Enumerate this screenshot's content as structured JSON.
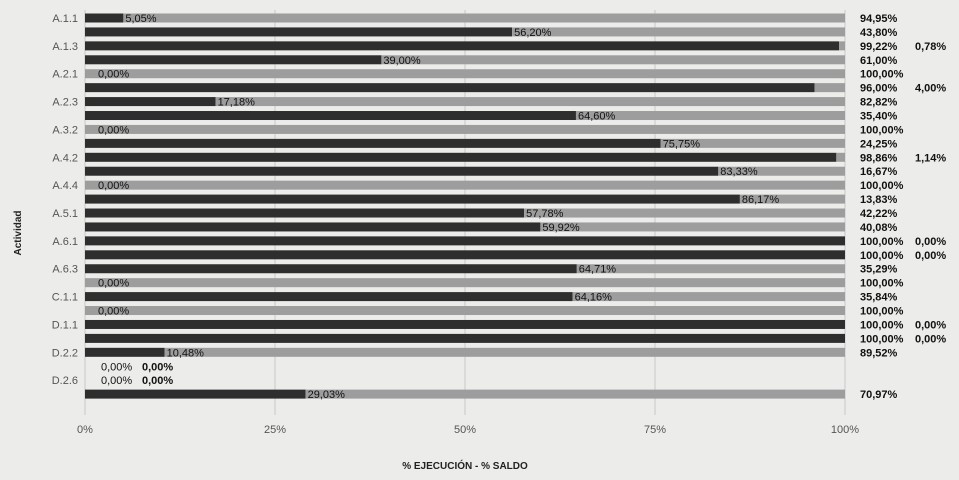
{
  "chart_data": {
    "type": "bar",
    "stacked": true,
    "orientation": "horizontal",
    "xlabel": "% EJECUCIÓN - % SALDO",
    "ylabel": "Actividad",
    "xlim": [
      0,
      100
    ],
    "x_ticks": [
      "0%",
      "25%",
      "50%",
      "75%",
      "100%"
    ],
    "grid": true,
    "category_labels": [
      "A.1.1",
      "A.1.3",
      "A.2.1",
      "A.2.3",
      "A.3.2",
      "A.4.2",
      "A.4.4",
      "A.5.1",
      "A.6.1",
      "A.6.3",
      "C.1.1",
      "D.1.1",
      "D.2.2",
      "D.2.6"
    ],
    "series": [
      {
        "name": "% EJECUCIÓN",
        "color": "#2e2e2e",
        "values": [
          5.05,
          56.2,
          99.22,
          39.0,
          0.0,
          96.0,
          17.18,
          64.6,
          0.0,
          75.75,
          98.86,
          83.33,
          0.0,
          86.17,
          57.78,
          59.92,
          100.0,
          100.0,
          64.71,
          0.0,
          64.16,
          0.0,
          100.0,
          100.0,
          10.48,
          0.0,
          0.0,
          29.03
        ]
      },
      {
        "name": "% SALDO",
        "color": "#9d9d9d",
        "values": [
          94.95,
          43.8,
          0.78,
          61.0,
          100.0,
          4.0,
          82.82,
          35.4,
          100.0,
          24.25,
          1.14,
          16.67,
          100.0,
          13.83,
          42.22,
          40.08,
          0.0,
          0.0,
          35.29,
          100.0,
          35.84,
          100.0,
          0.0,
          0.0,
          89.52,
          0.0,
          0.0,
          70.97
        ]
      }
    ],
    "exec_labels": [
      "5,05%",
      "56,20%",
      "99,22%",
      "39,00%",
      "0,00%",
      "96,00%",
      "17,18%",
      "64,60%",
      "0,00%",
      "75,75%",
      "98,86%",
      "83,33%",
      "0,00%",
      "86,17%",
      "57,78%",
      "59,92%",
      "100,00%",
      "100,00%",
      "64,71%",
      "0,00%",
      "64,16%",
      "0,00%",
      "100,00%",
      "100,00%",
      "10,48%",
      "0,00%",
      "0,00%",
      "29,03%"
    ],
    "saldo_labels": [
      "94,95%",
      "43,80%",
      "0,78%",
      "61,00%",
      "100,00%",
      "4,00%",
      "82,82%",
      "35,40%",
      "100,00%",
      "24,25%",
      "1,14%",
      "16,67%",
      "100,00%",
      "13,83%",
      "42,22%",
      "40,08%",
      "0,00%",
      "0,00%",
      "35,29%",
      "100,00%",
      "35,84%",
      "100,00%",
      "0,00%",
      "0,00%",
      "89,52%",
      "0,00%",
      "0,00%",
      "70,97%"
    ]
  }
}
